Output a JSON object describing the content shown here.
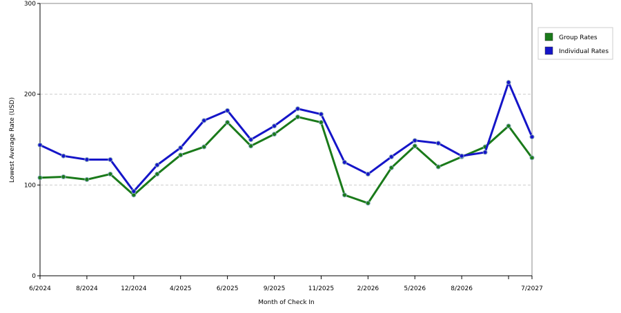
{
  "chart_data": {
    "type": "line",
    "x_label": "Month of Check In",
    "y_label": "Lowest Average Rate (USD)",
    "categories": [
      "6/2024",
      null,
      "8/2024",
      null,
      "12/2024",
      null,
      "4/2025",
      null,
      "6/2025",
      null,
      "9/2025",
      null,
      "11/2025",
      null,
      "2/2026",
      null,
      "5/2026",
      null,
      "8/2026",
      null,
      null,
      "7/2027"
    ],
    "series": [
      {
        "name": "Group Rates",
        "color": "#1a7a1a",
        "values": [
          108,
          109,
          106,
          112,
          89,
          112,
          133,
          142,
          169,
          143,
          156,
          175,
          169,
          89,
          80,
          119,
          143,
          120,
          131,
          142,
          165,
          130
        ]
      },
      {
        "name": "Individual Rates",
        "color": "#1515c8",
        "values": [
          144,
          132,
          128,
          128,
          93,
          122,
          141,
          171,
          182,
          150,
          165,
          184,
          178,
          125,
          112,
          131,
          149,
          146,
          132,
          136,
          213,
          153
        ]
      }
    ],
    "ylim": [
      0,
      300
    ],
    "yticks": [
      0,
      100,
      200,
      300
    ],
    "grid": true,
    "legend": "right"
  }
}
